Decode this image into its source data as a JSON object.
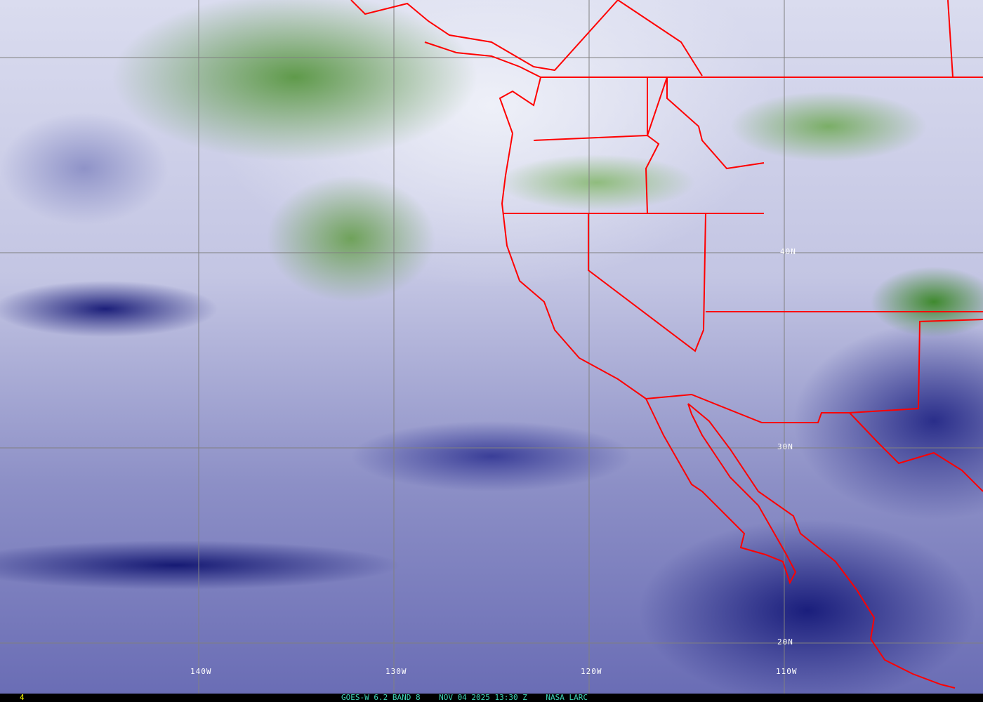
{
  "map": {
    "type": "satellite water vapor imagery",
    "colors": {
      "coastline": "#ff0000",
      "grid": "#808080",
      "caption": "#3fd6b8",
      "frame": "#ffff00"
    },
    "longitude_labels": [
      "140W",
      "130W",
      "120W",
      "110W"
    ],
    "latitude_labels": [
      "40N",
      "30N",
      "20N"
    ]
  },
  "footer": {
    "frame_number": "4",
    "caption": "GOES-W 6.2 BAND 8    NOV 04 2025 13:30 Z    NASA LARC"
  }
}
